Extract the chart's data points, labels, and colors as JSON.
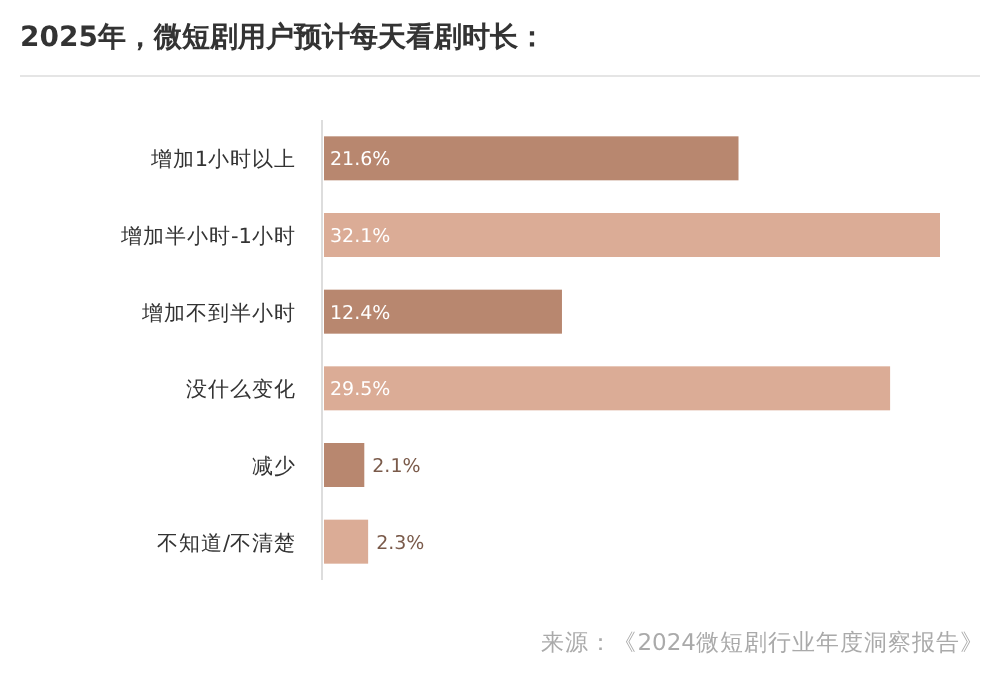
{
  "chart_data": {
    "type": "bar",
    "orientation": "horizontal",
    "title": "2025年，微短剧用户预计每天看剧时长：",
    "categories": [
      "增加1小时以上",
      "增加半小时-1小时",
      "增加不到半小时",
      "没什么变化",
      "减少",
      "不知道/不清楚"
    ],
    "values": [
      21.6,
      32.1,
      12.4,
      29.5,
      2.1,
      2.3
    ],
    "value_labels": [
      "21.6%",
      "32.1%",
      "12.4%",
      "29.5%",
      "2.1%",
      "2.3%"
    ],
    "colors": [
      "#b8876f",
      "#dbac96",
      "#b8876f",
      "#dbac96",
      "#b8876f",
      "#dbac96"
    ],
    "annotations": [
      "来源：《2024微短剧行业年度洞察报告》"
    ]
  }
}
